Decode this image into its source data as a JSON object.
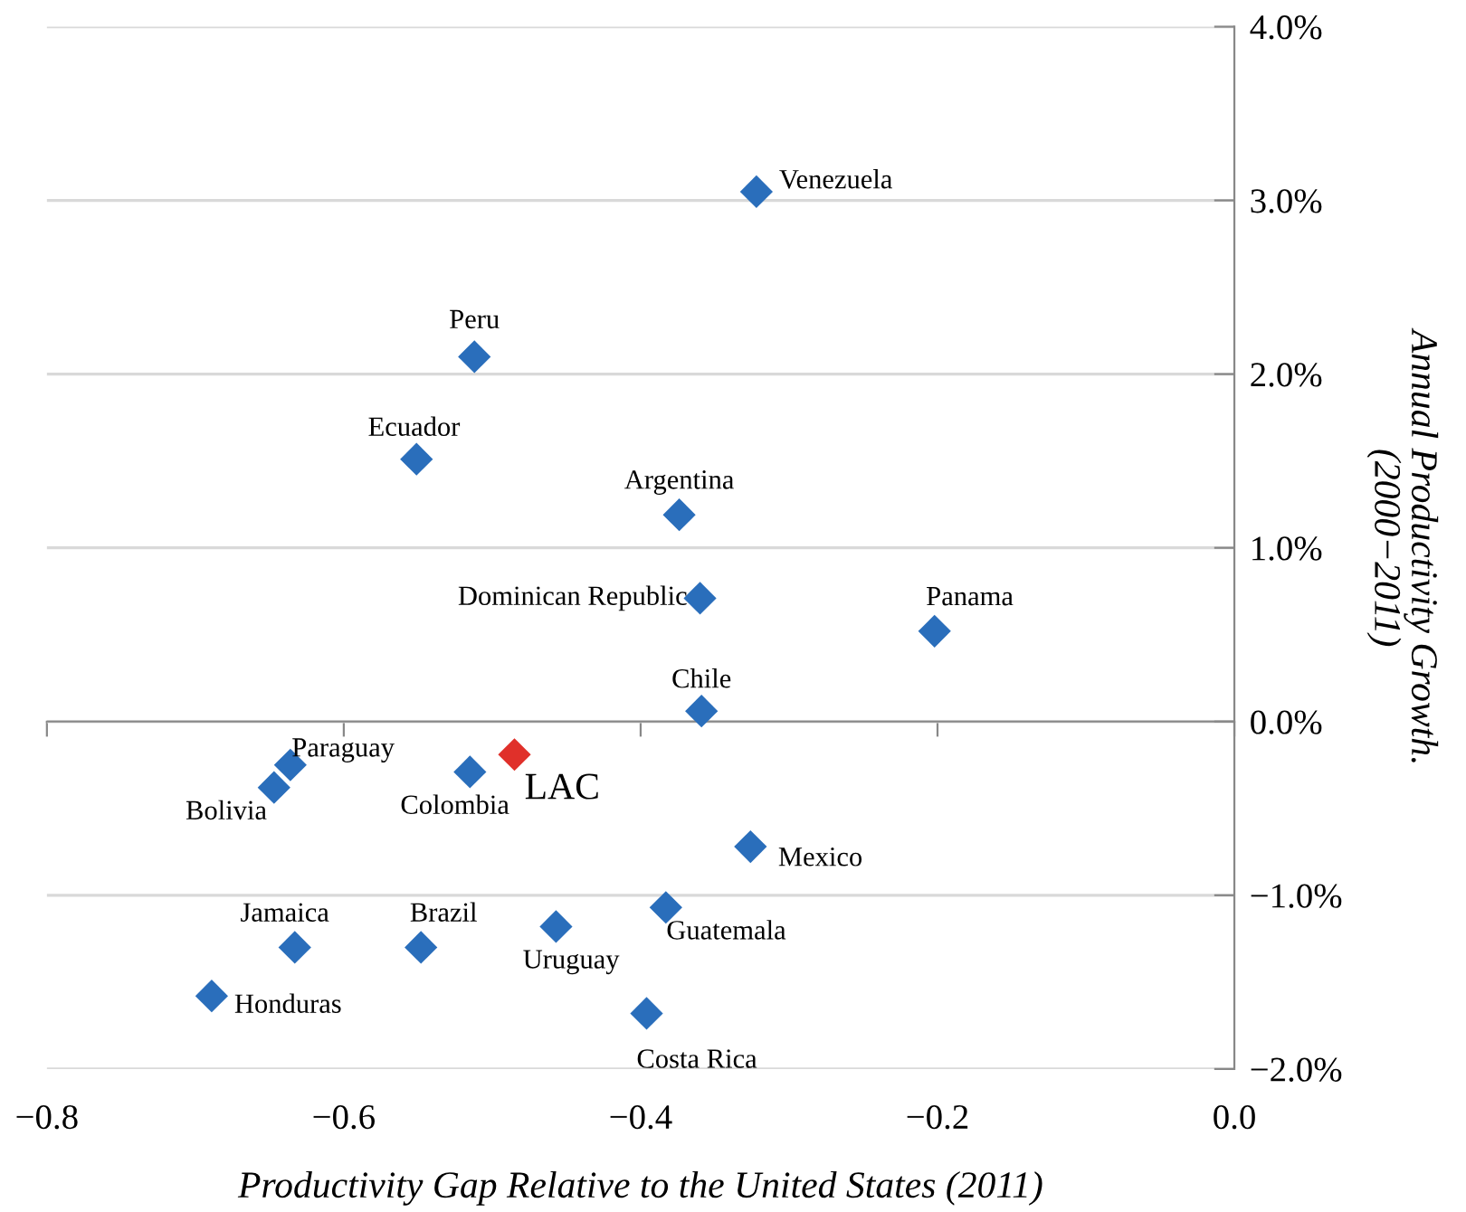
{
  "chart_data": {
    "type": "scatter",
    "xlabel": "Productivity Gap Relative to the United States (2011)",
    "ylabel": "Annual Productivity Growth.\n(2000−2011)",
    "x": [
      -0.322,
      -0.512,
      -0.551,
      -0.374,
      -0.36,
      -0.202,
      -0.359,
      -0.636,
      -0.647,
      -0.515,
      -0.485,
      -0.326,
      -0.383,
      -0.457,
      -0.548,
      -0.633,
      -0.689,
      -0.396
    ],
    "series": [
      {
        "values": [
          3.05,
          2.1,
          1.51,
          1.19,
          0.71,
          0.52,
          0.06,
          -0.25,
          -0.38,
          -0.29,
          -0.19,
          -0.72,
          -1.07,
          -1.18,
          -1.3,
          -1.3,
          -1.58,
          -1.68
        ],
        "colors": [
          "#2a6ebb",
          "#2a6ebb",
          "#2a6ebb",
          "#2a6ebb",
          "#2a6ebb",
          "#2a6ebb",
          "#2a6ebb",
          "#2a6ebb",
          "#2a6ebb",
          "#2a6ebb",
          "#e0302a",
          "#2a6ebb",
          "#2a6ebb",
          "#2a6ebb",
          "#2a6ebb",
          "#2a6ebb",
          "#2a6ebb",
          "#2a6ebb"
        ]
      }
    ],
    "annotations": [
      {
        "text": "Venezuela",
        "x": -0.322,
        "y": 3.05
      },
      {
        "text": "Peru",
        "x": -0.512,
        "y": 2.1
      },
      {
        "text": "Ecuador",
        "x": -0.551,
        "y": 1.51
      },
      {
        "text": "Argentina",
        "x": -0.374,
        "y": 1.19
      },
      {
        "text": "Dominican Republic",
        "x": -0.36,
        "y": 0.71
      },
      {
        "text": "Panama",
        "x": -0.202,
        "y": 0.52
      },
      {
        "text": "Chile",
        "x": -0.359,
        "y": 0.06
      },
      {
        "text": "Paraguay",
        "x": -0.636,
        "y": -0.25
      },
      {
        "text": "Bolivia",
        "x": -0.647,
        "y": -0.38
      },
      {
        "text": "Colombia",
        "x": -0.515,
        "y": -0.29
      },
      {
        "text": "LAC",
        "x": -0.485,
        "y": -0.19
      },
      {
        "text": "Mexico",
        "x": -0.326,
        "y": -0.72
      },
      {
        "text": "Guatemala",
        "x": -0.383,
        "y": -1.07
      },
      {
        "text": "Uruguay",
        "x": -0.457,
        "y": -1.18
      },
      {
        "text": "Brazil",
        "x": -0.548,
        "y": -1.3
      },
      {
        "text": "Jamaica",
        "x": -0.633,
        "y": -1.3
      },
      {
        "text": "Honduras",
        "x": -0.689,
        "y": -1.58
      },
      {
        "text": "Costa Rica",
        "x": -0.396,
        "y": -1.68
      }
    ],
    "xlim": [
      -0.8,
      0.0
    ],
    "xticks": [
      {
        "value": -0.8,
        "label": "−0.8"
      },
      {
        "value": -0.6,
        "label": "−0.6"
      },
      {
        "value": -0.4,
        "label": "−0.4"
      },
      {
        "value": -0.2,
        "label": "−0.2"
      },
      {
        "value": 0,
        "label": "0.0"
      }
    ],
    "ylim": [
      -2.0,
      4.0
    ],
    "yticks": [
      {
        "value": -2,
        "label": "−2.0%"
      },
      {
        "value": -1,
        "label": "−1.0%"
      },
      {
        "value": 0,
        "label": "0.0%"
      },
      {
        "value": 1,
        "label": "1.0%"
      },
      {
        "value": 2,
        "label": "2.0%"
      },
      {
        "value": 3,
        "label": "3.0%"
      },
      {
        "value": 4,
        "label": "4.0%"
      }
    ],
    "grid": "y",
    "marker": "diamond"
  }
}
